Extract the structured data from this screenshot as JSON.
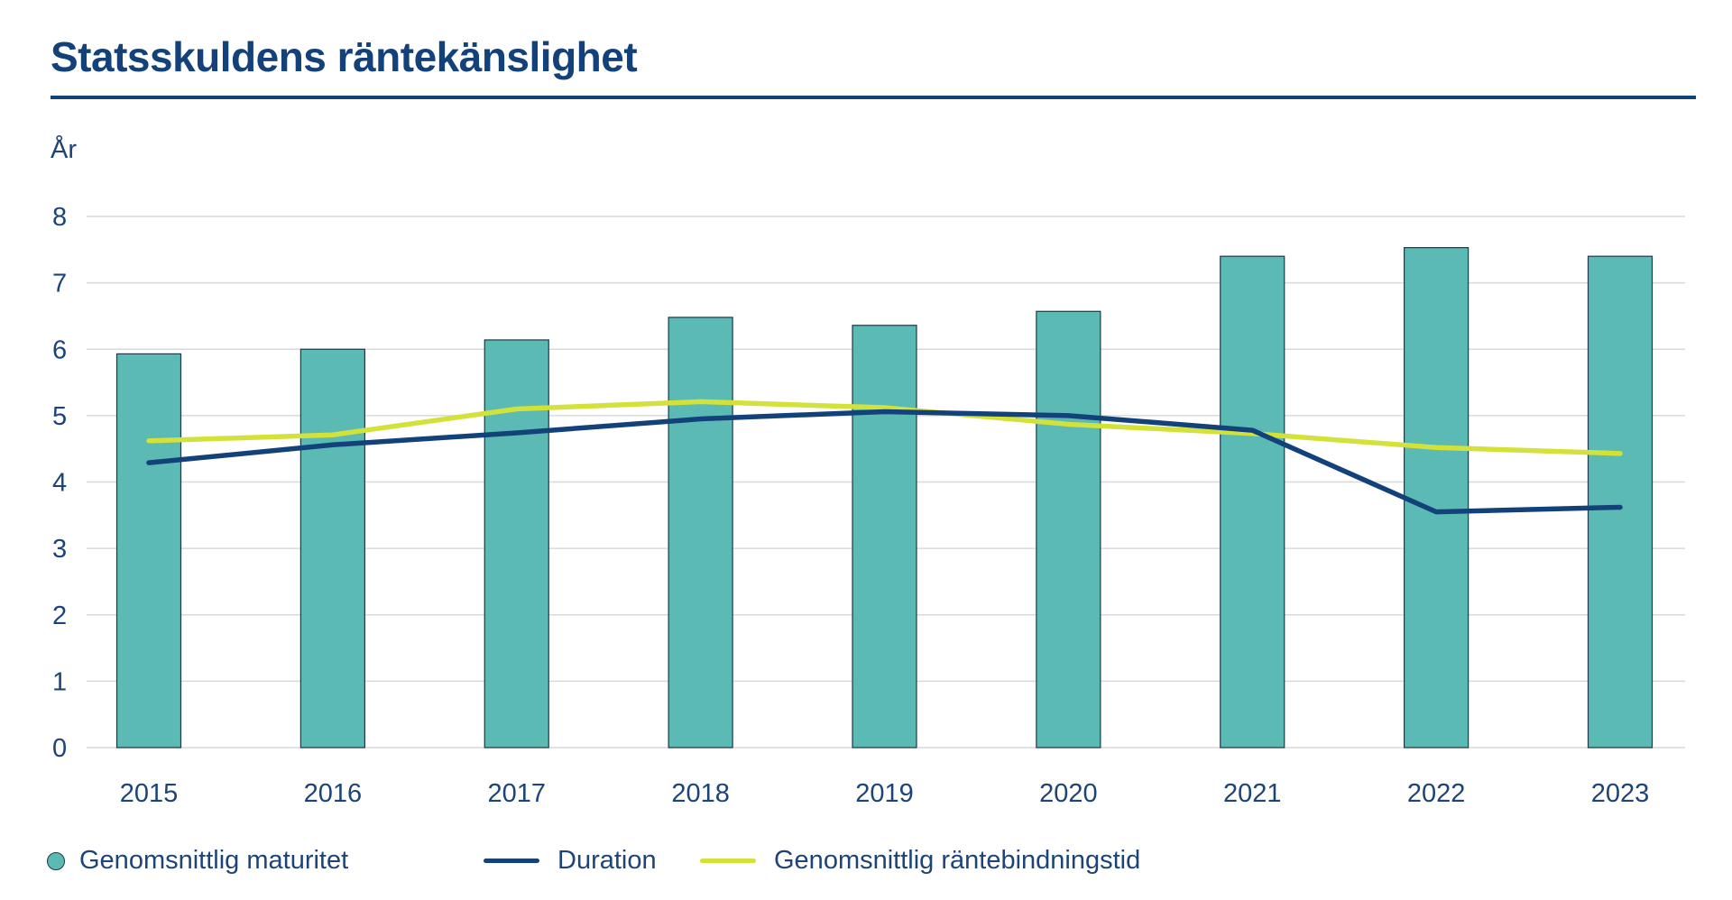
{
  "title": "Statsskuldens räntekänslighet",
  "chart_data": {
    "type": "bar",
    "y_unit_label": "År",
    "categories": [
      "2015",
      "2016",
      "2017",
      "2018",
      "2019",
      "2020",
      "2021",
      "2022",
      "2023"
    ],
    "ylim": [
      0,
      8
    ],
    "yticks": [
      "0",
      "1",
      "2",
      "3",
      "4",
      "5",
      "6",
      "7",
      "8"
    ],
    "grid": true,
    "legend_position": "bottom",
    "series": [
      {
        "name": "Genomsnittlig maturitet",
        "type": "bar",
        "color": "#5bbab3",
        "values": [
          5.93,
          6.0,
          6.14,
          6.48,
          6.36,
          6.57,
          7.4,
          7.53,
          7.4
        ]
      },
      {
        "name": "Duration",
        "type": "line",
        "color": "#13417a",
        "values": [
          4.29,
          4.56,
          4.74,
          4.95,
          5.06,
          5.0,
          4.78,
          3.55,
          3.62
        ]
      },
      {
        "name": "Genomsnittlig räntebindningstid",
        "type": "line",
        "color": "#d3e23a",
        "values": [
          4.62,
          4.71,
          5.1,
          5.21,
          5.12,
          4.87,
          4.73,
          4.52,
          4.43
        ]
      }
    ]
  }
}
